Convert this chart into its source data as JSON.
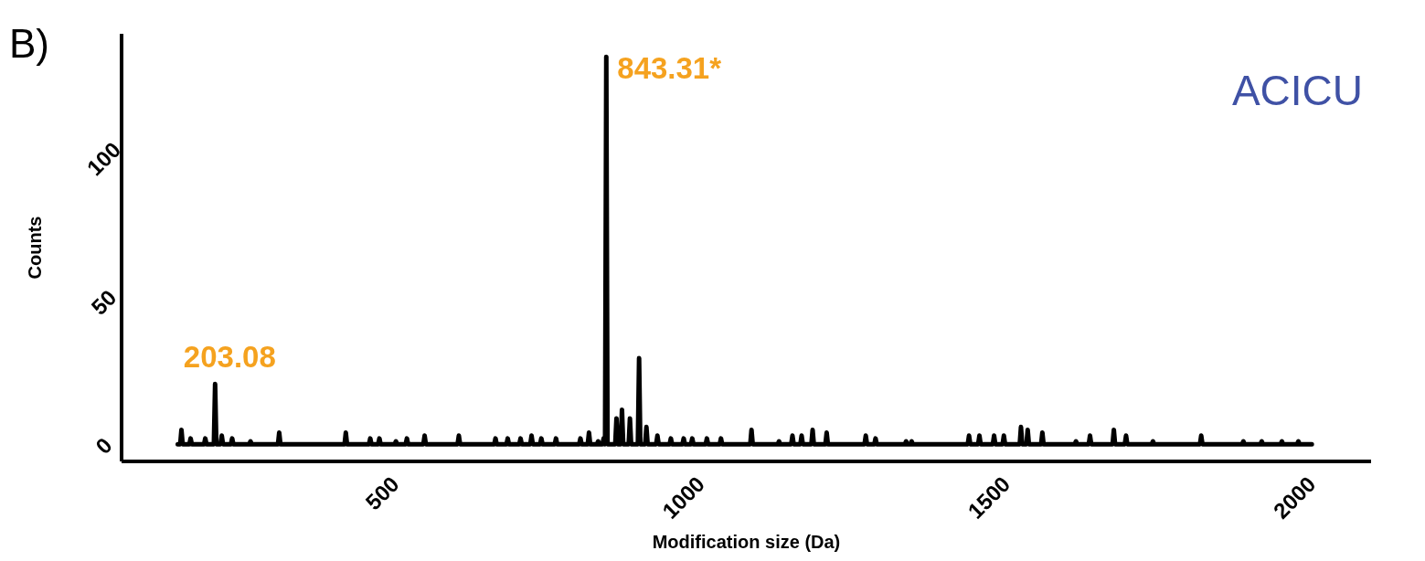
{
  "chart_data": {
    "type": "line",
    "xlabel": "Modification size (Da)",
    "ylabel": "Counts",
    "xlim": [
      50,
      2095
    ],
    "ylim": [
      -5,
      144
    ],
    "xticks": [
      500,
      1000,
      1500,
      2000
    ],
    "yticks": [
      0,
      50,
      100
    ],
    "x": [
      142,
      146,
      148,
      150,
      161,
      163,
      165,
      185,
      187,
      189,
      201.08,
      203.08,
      205.08,
      212,
      214,
      216,
      229,
      231,
      233,
      259,
      261,
      263,
      306,
      308,
      310,
      415,
      417,
      419,
      455,
      457,
      459,
      470,
      472,
      474,
      497,
      499,
      501,
      515,
      517,
      519,
      544,
      546,
      548,
      600,
      602,
      604,
      660,
      662,
      664,
      680,
      682,
      684,
      701,
      703,
      705,
      719,
      721,
      723,
      735,
      737,
      739,
      759,
      761,
      763,
      799,
      801,
      803,
      813,
      815,
      817,
      828,
      830,
      832,
      837,
      839,
      841,
      841.31,
      843.31,
      845.31,
      858,
      860,
      862,
      867,
      869,
      871,
      880,
      882,
      884,
      895,
      897,
      899,
      907,
      909,
      911,
      925,
      927,
      929,
      947,
      949,
      951,
      968,
      970,
      972,
      982,
      984,
      986,
      1006,
      1008,
      1010,
      1029,
      1031,
      1033,
      1079,
      1081,
      1083,
      1124,
      1126,
      1128,
      1146,
      1148,
      1150,
      1161,
      1163,
      1165,
      1179,
      1181,
      1183,
      1202,
      1204,
      1206,
      1266,
      1268,
      1270,
      1282,
      1284,
      1286,
      1332,
      1334,
      1336,
      1341,
      1343,
      1345,
      1435,
      1437,
      1439,
      1452,
      1454,
      1456,
      1476,
      1478,
      1480,
      1492,
      1494,
      1496,
      1520,
      1522,
      1524,
      1531,
      1533,
      1535,
      1555,
      1557,
      1559,
      1610,
      1612,
      1614,
      1633,
      1635,
      1637,
      1672,
      1674,
      1676,
      1692,
      1694,
      1696,
      1736,
      1738,
      1740,
      1815,
      1817,
      1819,
      1884,
      1886,
      1888,
      1914,
      1916,
      1918,
      1947,
      1949,
      1951,
      1974,
      1976,
      1978,
      1998
    ],
    "series": [
      {
        "color": "#000000",
        "values": [
          1,
          1,
          6,
          1,
          1,
          3,
          1,
          1,
          3,
          1,
          1,
          22,
          1,
          1,
          4,
          1,
          1,
          3,
          1,
          1,
          2,
          1,
          1,
          5,
          1,
          1,
          5,
          1,
          1,
          3,
          1,
          1,
          3,
          1,
          1,
          2,
          1,
          1,
          3,
          1,
          1,
          4,
          1,
          1,
          4,
          1,
          1,
          3,
          1,
          1,
          3,
          1,
          1,
          3,
          1,
          1,
          4,
          1,
          1,
          3,
          1,
          1,
          3,
          1,
          1,
          3,
          1,
          1,
          5,
          1,
          1,
          2,
          1,
          1,
          3,
          1,
          1,
          136,
          1,
          1,
          10,
          1,
          1,
          13,
          1,
          1,
          10,
          1,
          1,
          31,
          1,
          1,
          7,
          1,
          1,
          4,
          1,
          1,
          3,
          1,
          1,
          3,
          1,
          1,
          3,
          1,
          1,
          3,
          1,
          1,
          3,
          1,
          1,
          6,
          1,
          1,
          2,
          1,
          1,
          4,
          1,
          1,
          4,
          1,
          1,
          6,
          1,
          1,
          5,
          1,
          1,
          4,
          1,
          1,
          3,
          1,
          1,
          2,
          1,
          1,
          2,
          1,
          1,
          4,
          1,
          1,
          4,
          1,
          1,
          4,
          1,
          1,
          4,
          1,
          1,
          7,
          1,
          1,
          6,
          1,
          1,
          5,
          1,
          1,
          2,
          1,
          1,
          4,
          1,
          1,
          6,
          1,
          1,
          4,
          1,
          1,
          2,
          1,
          1,
          4,
          1,
          1,
          2,
          1,
          1,
          2,
          1,
          1,
          2,
          1,
          1,
          2,
          1,
          1
        ]
      }
    ],
    "annotations": [
      "B)",
      "ACICU",
      {
        "text": "203.08",
        "x": 203.08,
        "y": 22
      },
      {
        "text": "843.31*",
        "x": 843.31,
        "y": 136
      }
    ]
  }
}
